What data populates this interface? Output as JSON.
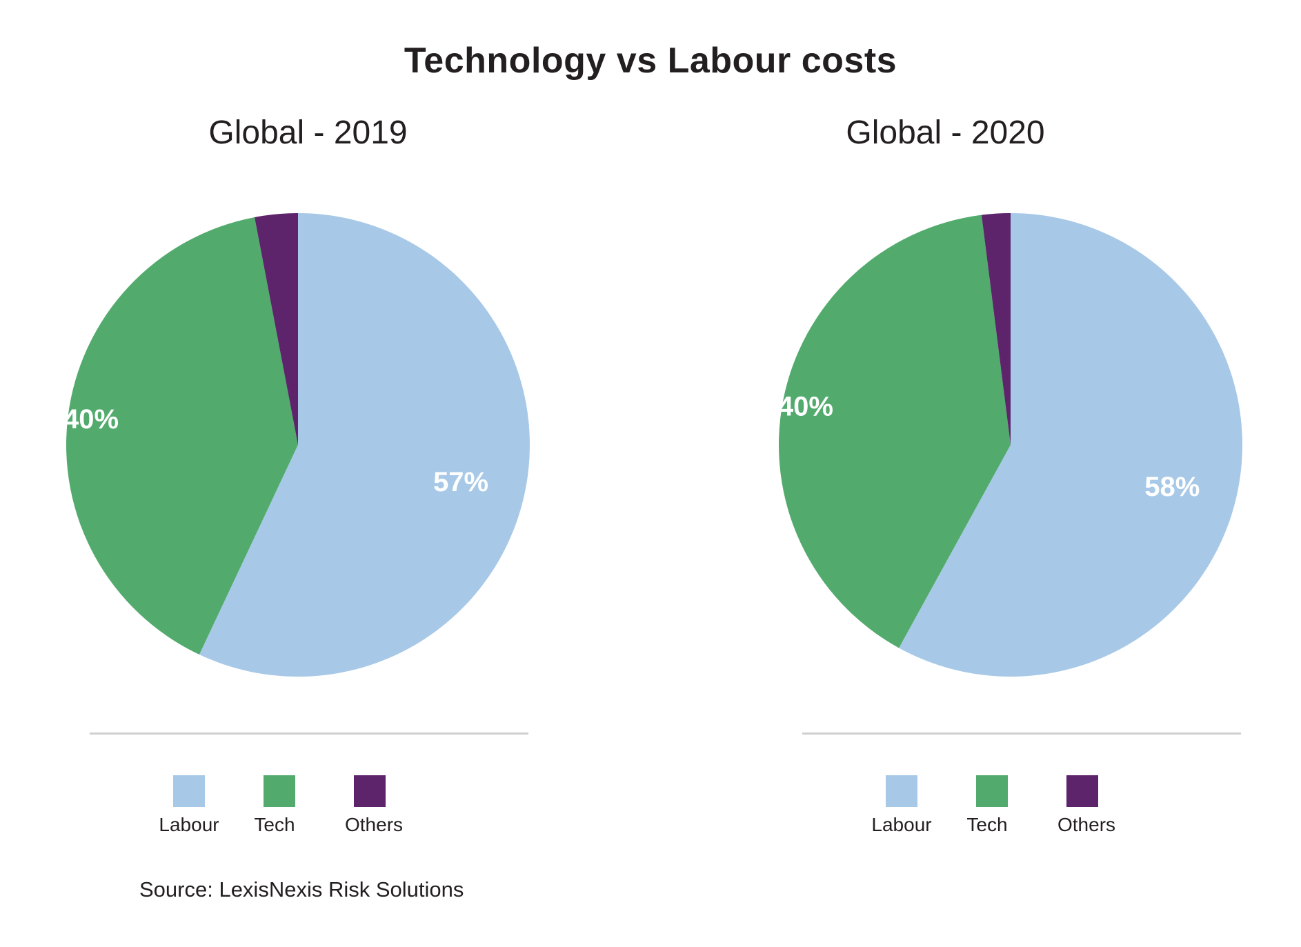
{
  "title": "Technology vs Labour costs",
  "source": "Source:  LexisNexis Risk Solutions",
  "legend": [
    {
      "label": "Labour",
      "color": "#a7c9e7"
    },
    {
      "label": "Tech",
      "color": "#52ab6d"
    },
    {
      "label": "Others",
      "color": "#5e246b"
    }
  ],
  "chart_data": [
    {
      "type": "pie",
      "title": "Global - 2019",
      "categories": [
        "Labour",
        "Tech",
        "Others"
      ],
      "values": [
        57,
        40,
        3
      ],
      "labels": [
        "57%",
        "40%",
        ""
      ],
      "colors": [
        "#a7c9e7",
        "#52ab6d",
        "#5e246b"
      ]
    },
    {
      "type": "pie",
      "title": "Global - 2020",
      "categories": [
        "Labour",
        "Tech",
        "Others"
      ],
      "values": [
        58,
        40,
        2
      ],
      "labels": [
        "58%",
        "40%",
        ""
      ],
      "colors": [
        "#a7c9e7",
        "#52ab6d",
        "#5e246b"
      ]
    }
  ]
}
